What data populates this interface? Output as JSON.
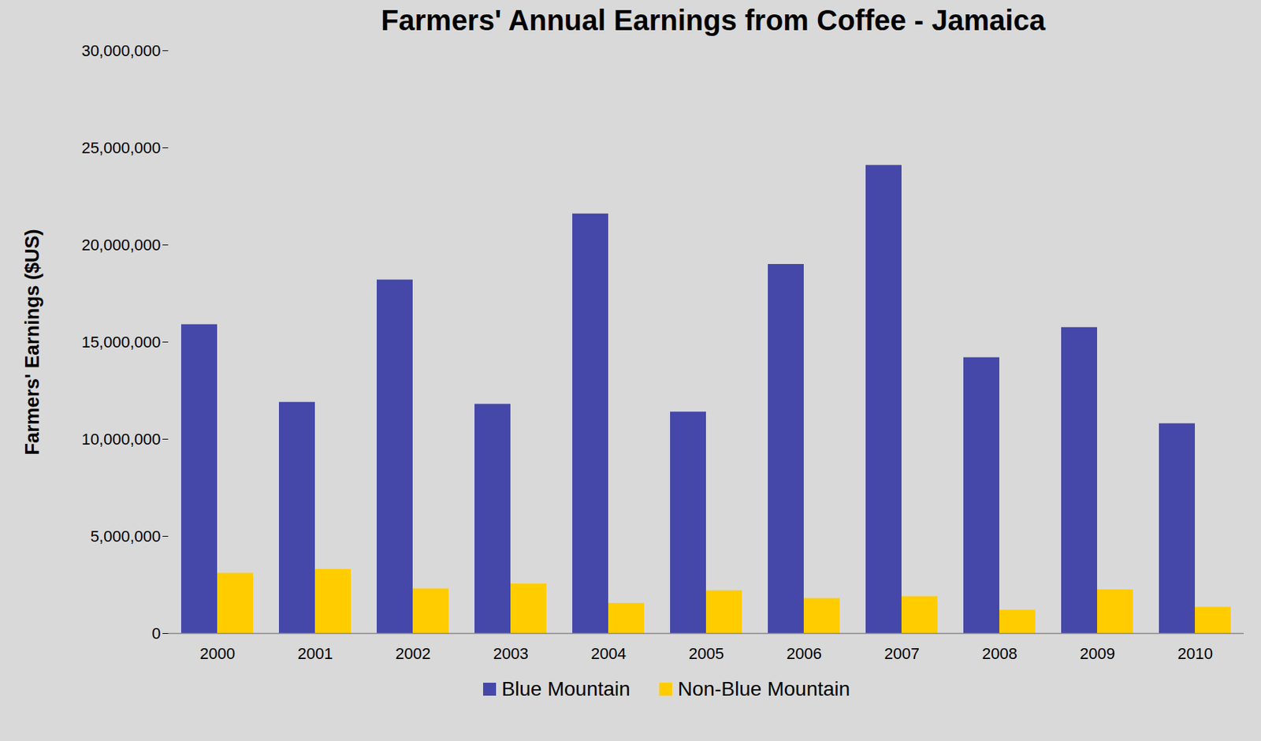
{
  "chart_data": {
    "type": "bar",
    "title": "Farmers' Annual Earnings from Coffee - Jamaica",
    "y_label": "Farmers' Earnings ($US)",
    "categories": [
      "2000",
      "2001",
      "2002",
      "2003",
      "2004",
      "2005",
      "2006",
      "2007",
      "2008",
      "2009",
      "2010"
    ],
    "series": [
      {
        "name": "Blue Mountain",
        "color": "#4548a8",
        "values": [
          15900000,
          11900000,
          18200000,
          11800000,
          21600000,
          11400000,
          19000000,
          24100000,
          14200000,
          15750000,
          10800000
        ]
      },
      {
        "name": "Non-Blue Mountain",
        "color": "#ffcc00",
        "values": [
          3100000,
          3300000,
          2300000,
          2550000,
          1550000,
          2200000,
          1800000,
          1900000,
          1200000,
          2250000,
          1350000
        ]
      }
    ],
    "ylim": [
      0,
      30000000
    ],
    "yticks": [
      0,
      {
        "value": 5000000,
        "label": "5,000,000"
      },
      {
        "value": 10000000,
        "label": "10,000,000"
      },
      {
        "value": 15000000,
        "label": "15,000,000"
      },
      {
        "value": 20000000,
        "label": "20,000,000"
      },
      {
        "value": 25000000,
        "label": "25,000,000"
      },
      {
        "value": 30000000,
        "label": "30,000,000"
      }
    ],
    "grid": false,
    "legend": "bottom"
  }
}
